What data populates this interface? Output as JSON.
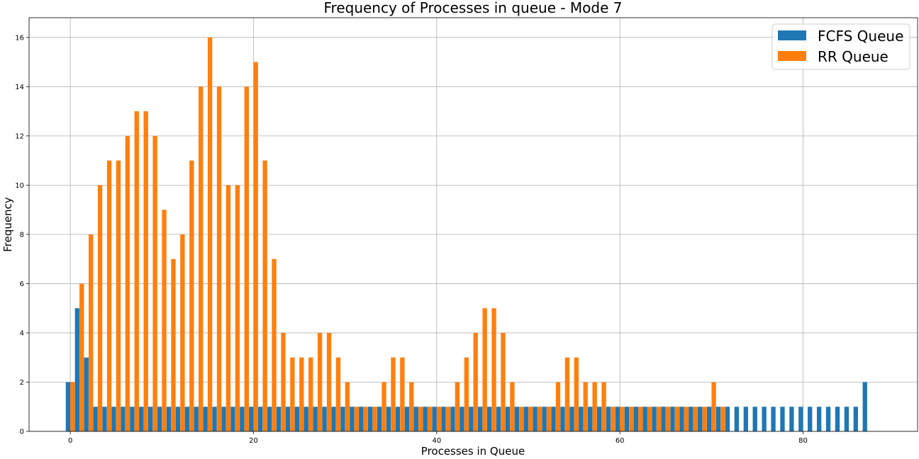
{
  "chart_data": {
    "type": "bar",
    "title": "Frequency of Processes in queue - Mode 7",
    "xlabel": "Processes in Queue",
    "ylabel": "Frequency",
    "xlim": [
      -4.5,
      92.5
    ],
    "ylim": [
      0,
      16.8
    ],
    "xticks": [
      0,
      20,
      40,
      60,
      80
    ],
    "yticks": [
      0,
      2,
      4,
      6,
      8,
      10,
      12,
      14,
      16
    ],
    "grid": true,
    "legend_position": "top-right",
    "bar_width": 0.49,
    "series": [
      {
        "name": "FCFS Queue",
        "color": "#1f77b4",
        "offset": -0.25,
        "x": [
          0,
          1,
          2,
          3,
          4,
          5,
          6,
          7,
          8,
          9,
          10,
          11,
          12,
          13,
          14,
          15,
          16,
          17,
          18,
          19,
          20,
          21,
          22,
          23,
          24,
          25,
          26,
          27,
          28,
          29,
          30,
          31,
          32,
          33,
          34,
          35,
          36,
          37,
          38,
          39,
          40,
          41,
          42,
          43,
          44,
          45,
          46,
          47,
          48,
          49,
          50,
          51,
          52,
          53,
          54,
          55,
          56,
          57,
          58,
          59,
          60,
          61,
          62,
          63,
          64,
          65,
          66,
          67,
          68,
          69,
          70,
          71,
          72,
          73,
          74,
          75,
          76,
          77,
          78,
          79,
          80,
          81,
          82,
          83,
          84,
          85,
          86,
          87
        ],
        "values": [
          2,
          5,
          3,
          1,
          1,
          1,
          1,
          1,
          1,
          1,
          1,
          1,
          1,
          1,
          1,
          1,
          1,
          1,
          1,
          1,
          1,
          1,
          1,
          1,
          1,
          1,
          1,
          1,
          1,
          1,
          1,
          1,
          1,
          1,
          1,
          1,
          1,
          1,
          1,
          1,
          1,
          1,
          1,
          1,
          1,
          1,
          1,
          1,
          1,
          1,
          1,
          1,
          1,
          1,
          1,
          1,
          1,
          1,
          1,
          1,
          1,
          1,
          1,
          1,
          1,
          1,
          1,
          1,
          1,
          1,
          1,
          1,
          1,
          1,
          1,
          1,
          1,
          1,
          1,
          1,
          1,
          1,
          1,
          1,
          1,
          1,
          1,
          2
        ]
      },
      {
        "name": "RR Queue",
        "color": "#ff7f0e",
        "offset": 0.25,
        "x": [
          0,
          1,
          2,
          3,
          4,
          5,
          6,
          7,
          8,
          9,
          10,
          11,
          12,
          13,
          14,
          15,
          16,
          17,
          18,
          19,
          20,
          21,
          22,
          23,
          24,
          25,
          26,
          27,
          28,
          29,
          30,
          31,
          32,
          33,
          34,
          35,
          36,
          37,
          38,
          39,
          40,
          41,
          42,
          43,
          44,
          45,
          46,
          47,
          48,
          49,
          50,
          51,
          52,
          53,
          54,
          55,
          56,
          57,
          58,
          59,
          60,
          61,
          62,
          63,
          64,
          65,
          66,
          67,
          68,
          69,
          70,
          71
        ],
        "values": [
          2,
          6,
          8,
          10,
          11,
          11,
          12,
          13,
          13,
          12,
          9,
          7,
          8,
          11,
          14,
          16,
          14,
          10,
          10,
          14,
          15,
          11,
          7,
          4,
          3,
          3,
          3,
          4,
          4,
          3,
          2,
          1,
          1,
          1,
          2,
          3,
          3,
          2,
          1,
          1,
          1,
          1,
          2,
          3,
          4,
          5,
          5,
          4,
          2,
          1,
          1,
          1,
          1,
          2,
          3,
          3,
          2,
          2,
          2,
          1,
          1,
          1,
          1,
          1,
          1,
          1,
          1,
          1,
          1,
          1,
          2,
          1
        ]
      }
    ]
  }
}
